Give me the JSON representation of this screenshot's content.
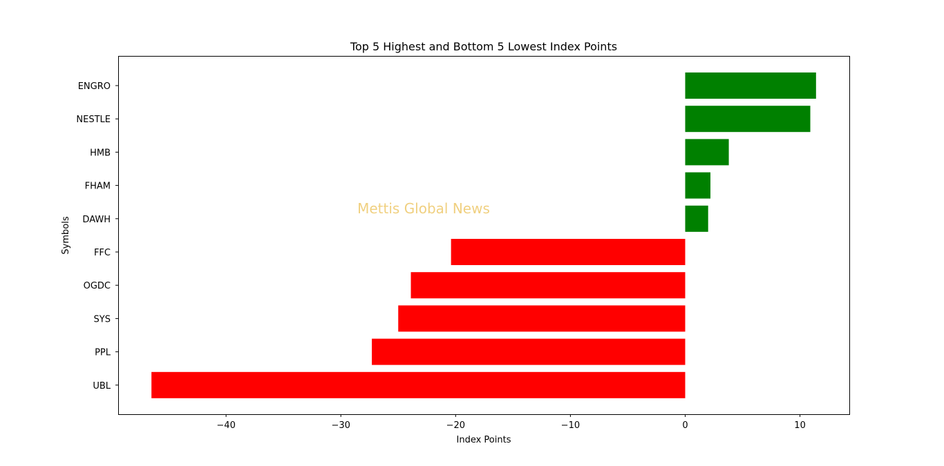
{
  "chart_data": {
    "type": "bar",
    "orientation": "horizontal",
    "title": "Top 5 Highest and Bottom 5 Lowest Index Points",
    "xlabel": "Index Points",
    "ylabel": "Symbols",
    "categories": [
      "ENGRO",
      "NESTLE",
      "HMB",
      "FHAM",
      "DAWH",
      "FFC",
      "OGDC",
      "SYS",
      "PPL",
      "UBL"
    ],
    "values": [
      11.4,
      10.9,
      3.8,
      2.2,
      2.0,
      -20.4,
      -23.9,
      -25.0,
      -27.3,
      -46.5
    ],
    "bar_colors": [
      "#008000",
      "#008000",
      "#008000",
      "#008000",
      "#008000",
      "#ff0000",
      "#ff0000",
      "#ff0000",
      "#ff0000",
      "#ff0000"
    ],
    "xlim": [
      -49.4,
      14.3
    ],
    "xticks": [
      -40,
      -30,
      -20,
      -10,
      0,
      10
    ],
    "xtick_labels": [
      "−40",
      "−30",
      "−20",
      "−10",
      "0",
      "10"
    ],
    "grid": false,
    "legend": "none",
    "watermark": {
      "text": "Mettis Global News",
      "color": "#f0d080"
    }
  }
}
